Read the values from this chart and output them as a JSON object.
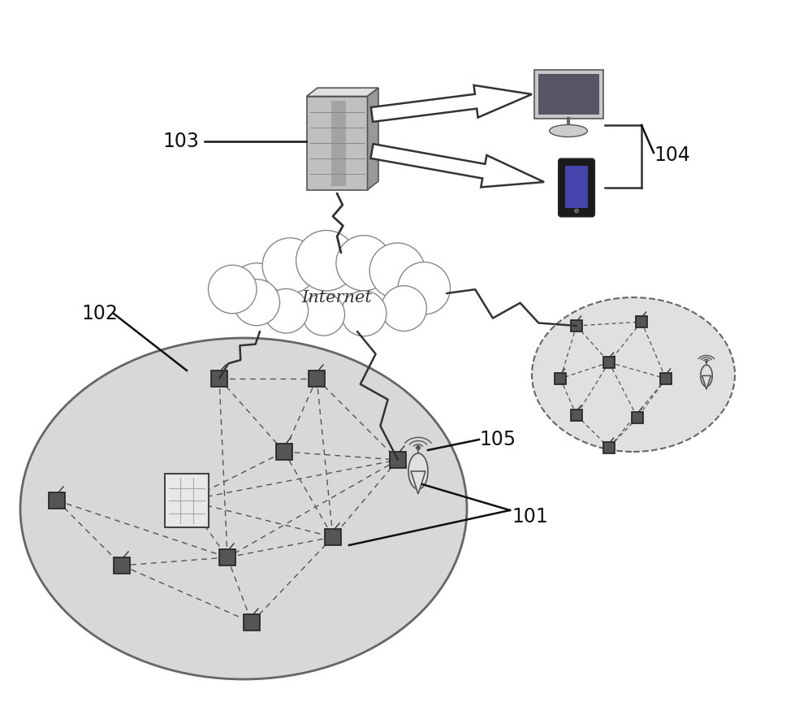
{
  "bg_color": "#ffffff",
  "cloud_text": "Internet",
  "label_103": "103",
  "label_104": "104",
  "label_102": "102",
  "label_101": "101",
  "label_105": "105"
}
